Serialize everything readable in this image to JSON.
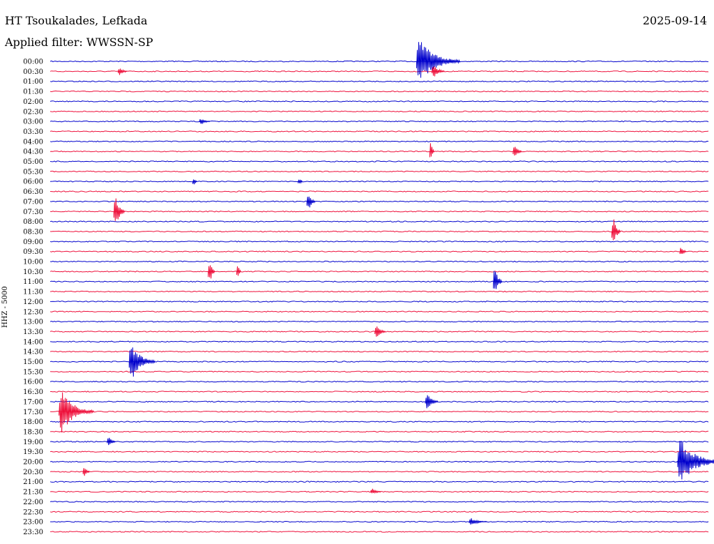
{
  "header": {
    "station": "HT Tsoukalades, Lefkada",
    "date": "2025-09-14",
    "filter": "Applied filter: WWSSN-SP"
  },
  "chart_data": {
    "type": "line",
    "ylabel": "HHZ - 5000",
    "colors": [
      "#0000cc",
      "#ee0f3a"
    ],
    "rows": [
      "00:00",
      "00:30",
      "01:00",
      "01:30",
      "02:00",
      "02:30",
      "03:00",
      "03:30",
      "04:00",
      "04:30",
      "05:00",
      "05:30",
      "06:00",
      "06:30",
      "07:00",
      "07:30",
      "08:00",
      "08:30",
      "09:00",
      "09:30",
      "10:00",
      "10:30",
      "11:00",
      "11:30",
      "12:00",
      "12:30",
      "13:00",
      "13:30",
      "14:00",
      "14:30",
      "15:00",
      "15:30",
      "16:00",
      "16:30",
      "17:00",
      "17:30",
      "18:00",
      "18:30",
      "19:00",
      "19:30",
      "20:00",
      "20:30",
      "21:00",
      "21:30",
      "22:00",
      "22:30",
      "23:00",
      "23:30"
    ],
    "events": [
      {
        "row": 0,
        "minute": 16.7,
        "amp": 1.0,
        "dur": 2.0
      },
      {
        "row": 1,
        "minute": 3.1,
        "amp": 0.3,
        "dur": 0.4
      },
      {
        "row": 1,
        "minute": 17.4,
        "amp": 0.4,
        "dur": 0.6
      },
      {
        "row": 6,
        "minute": 6.8,
        "amp": 0.2,
        "dur": 0.5
      },
      {
        "row": 9,
        "minute": 17.3,
        "amp": 1.0,
        "dur": 0.2
      },
      {
        "row": 9,
        "minute": 21.1,
        "amp": 0.5,
        "dur": 0.4
      },
      {
        "row": 12,
        "minute": 6.5,
        "amp": 0.4,
        "dur": 0.2
      },
      {
        "row": 12,
        "minute": 11.3,
        "amp": 0.4,
        "dur": 0.2
      },
      {
        "row": 14,
        "minute": 11.7,
        "amp": 0.6,
        "dur": 0.4
      },
      {
        "row": 15,
        "minute": 2.9,
        "amp": 1.0,
        "dur": 0.5
      },
      {
        "row": 17,
        "minute": 25.6,
        "amp": 1.0,
        "dur": 0.4
      },
      {
        "row": 19,
        "minute": 28.7,
        "amp": 0.4,
        "dur": 0.3
      },
      {
        "row": 21,
        "minute": 7.2,
        "amp": 1.0,
        "dur": 0.3
      },
      {
        "row": 21,
        "minute": 8.5,
        "amp": 0.8,
        "dur": 0.2
      },
      {
        "row": 22,
        "minute": 20.2,
        "amp": 1.0,
        "dur": 0.4
      },
      {
        "row": 27,
        "minute": 14.8,
        "amp": 0.4,
        "dur": 0.5
      },
      {
        "row": 30,
        "minute": 3.6,
        "amp": 0.9,
        "dur": 1.2
      },
      {
        "row": 34,
        "minute": 17.1,
        "amp": 0.5,
        "dur": 0.6
      },
      {
        "row": 35,
        "minute": 0.4,
        "amp": 1.0,
        "dur": 1.6
      },
      {
        "row": 38,
        "minute": 2.6,
        "amp": 0.3,
        "dur": 0.4
      },
      {
        "row": 40,
        "minute": 28.6,
        "amp": 1.0,
        "dur": 2.0
      },
      {
        "row": 41,
        "minute": 1.5,
        "amp": 0.4,
        "dur": 0.3
      },
      {
        "row": 43,
        "minute": 14.6,
        "amp": 0.2,
        "dur": 0.5
      },
      {
        "row": 46,
        "minute": 19.1,
        "amp": 0.2,
        "dur": 0.8
      }
    ]
  }
}
